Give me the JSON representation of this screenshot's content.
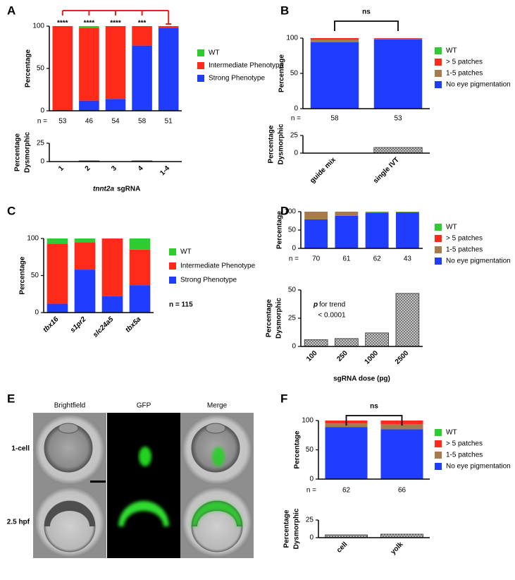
{
  "panel_labels": [
    "A",
    "B",
    "C",
    "D",
    "E",
    "F"
  ],
  "image_panel": {
    "columns": [
      "Brightfield",
      "GFP",
      "Merge"
    ],
    "rows": [
      "1-cell",
      "2.5 hpf"
    ]
  },
  "chart_data": [
    {
      "type": "stacked_bar",
      "ylabel": "Percentage",
      "ylim": [
        0,
        100
      ],
      "yticks": [
        0,
        50,
        100
      ],
      "series": [
        {
          "name": "Strong Phenotype",
          "color": "#1f3cff",
          "values": [
            0,
            12,
            14,
            77,
            98
          ]
        },
        {
          "name": "Intermediate Phenotype",
          "color": "#ff2a1a",
          "values": [
            100,
            86,
            86,
            23,
            2
          ]
        },
        {
          "name": "WT",
          "color": "#2ecc2e",
          "values": [
            0,
            2,
            0,
            0,
            0
          ]
        }
      ],
      "significance": [
        "****",
        "****",
        "****",
        "***"
      ],
      "n_label": "n =",
      "n": [
        53,
        46,
        54,
        58,
        51
      ]
    },
    {
      "type": "bar",
      "ylabel": [
        "Percentage",
        "Dysmorphic"
      ],
      "categories": [
        "1",
        "2",
        "3",
        "4",
        "1-4"
      ],
      "values": [
        0,
        1,
        0,
        1,
        0
      ],
      "ylim": [
        0,
        25
      ],
      "yticks": [
        0,
        25
      ],
      "hatch": true,
      "xlabel_gene": "tnnt2a",
      "xlabel": "sgRNA"
    },
    {
      "type": "stacked_bar",
      "ylabel": "Percentage",
      "ylim": [
        0,
        100
      ],
      "yticks": [
        0,
        50,
        100
      ],
      "series": [
        {
          "name": "No eye pigmentation",
          "color": "#1f3cff",
          "values": [
            94,
            98
          ]
        },
        {
          "name": "1-5 patches",
          "color": "#a87b4f",
          "values": [
            4,
            1.5
          ]
        },
        {
          "name": "> 5 patches",
          "color": "#ff2a1a",
          "values": [
            2,
            0.5
          ]
        },
        {
          "name": "WT",
          "color": "#2ecc2e",
          "values": [
            0,
            0
          ]
        }
      ],
      "significance": "ns",
      "n_label": "n =",
      "n": [
        58,
        53
      ]
    },
    {
      "type": "bar",
      "ylabel": [
        "Percentage",
        "Dysmorphic"
      ],
      "categories": [
        "guide mix",
        "single IVT"
      ],
      "values": [
        0,
        8
      ],
      "ylim": [
        0,
        25
      ],
      "yticks": [
        0,
        25
      ],
      "hatch": true
    },
    {
      "type": "stacked_bar",
      "ylabel": "Percentage",
      "ylim": [
        0,
        100
      ],
      "yticks": [
        0,
        50,
        100
      ],
      "categories": [
        "tbx16",
        "s1pr2",
        "slc24a5",
        "tbx5a"
      ],
      "categories_italic": true,
      "series": [
        {
          "name": "Strong Phenotype",
          "color": "#1f3cff",
          "values": [
            12,
            58,
            22,
            37
          ]
        },
        {
          "name": "Intermediate Phenotype",
          "color": "#ff2a1a",
          "values": [
            81,
            37,
            78,
            48
          ]
        },
        {
          "name": "WT",
          "color": "#2ecc2e",
          "values": [
            7,
            5,
            0,
            15
          ]
        }
      ],
      "annotation": "n = 115"
    },
    {
      "type": "stacked_bar",
      "ylabel": "Percentage",
      "ylim": [
        0,
        100
      ],
      "yticks": [
        0,
        50,
        100
      ],
      "series": [
        {
          "name": "No eye pigmentation",
          "color": "#1f3cff",
          "values": [
            79,
            89,
            97,
            98
          ]
        },
        {
          "name": "1-5 patches",
          "color": "#a87b4f",
          "values": [
            21,
            11,
            2,
            1
          ]
        },
        {
          "name": "> 5 patches",
          "color": "#ff2a1a",
          "values": [
            0,
            0,
            0,
            0
          ]
        },
        {
          "name": "WT",
          "color": "#2ecc2e",
          "values": [
            0,
            0,
            1,
            1
          ]
        }
      ],
      "n_label": "n =",
      "n": [
        70,
        61,
        62,
        43
      ]
    },
    {
      "type": "bar",
      "ylabel": [
        "Percentage",
        "Dysmorphic"
      ],
      "categories": [
        "100",
        "250",
        "1000",
        "2500"
      ],
      "values": [
        6,
        7,
        12,
        47
      ],
      "ylim": [
        0,
        50
      ],
      "yticks": [
        0,
        25,
        50
      ],
      "hatch": true,
      "annotation_p": "p",
      "annotation": "for trend",
      "annotation2": "< 0.0001",
      "xlabel": "sgRNA dose (pg)"
    },
    {
      "type": "stacked_bar",
      "ylabel": "Percentage",
      "ylim": [
        0,
        100
      ],
      "yticks": [
        0,
        50,
        100
      ],
      "series": [
        {
          "name": "No eye pigmentation",
          "color": "#1f3cff",
          "values": [
            89,
            85
          ]
        },
        {
          "name": "1-5 patches",
          "color": "#a87b4f",
          "values": [
            6,
            9
          ]
        },
        {
          "name": "> 5 patches",
          "color": "#ff2a1a",
          "values": [
            5,
            6
          ]
        },
        {
          "name": "WT",
          "color": "#2ecc2e",
          "values": [
            0,
            0
          ]
        }
      ],
      "significance": "ns",
      "n_label": "n =",
      "n": [
        62,
        66
      ]
    },
    {
      "type": "bar",
      "ylabel": [
        "Percentage",
        "Dysmorphic"
      ],
      "categories": [
        "cell",
        "yolk"
      ],
      "values": [
        4,
        5
      ],
      "ylim": [
        0,
        25
      ],
      "yticks": [
        0,
        25
      ],
      "hatch": true
    }
  ]
}
